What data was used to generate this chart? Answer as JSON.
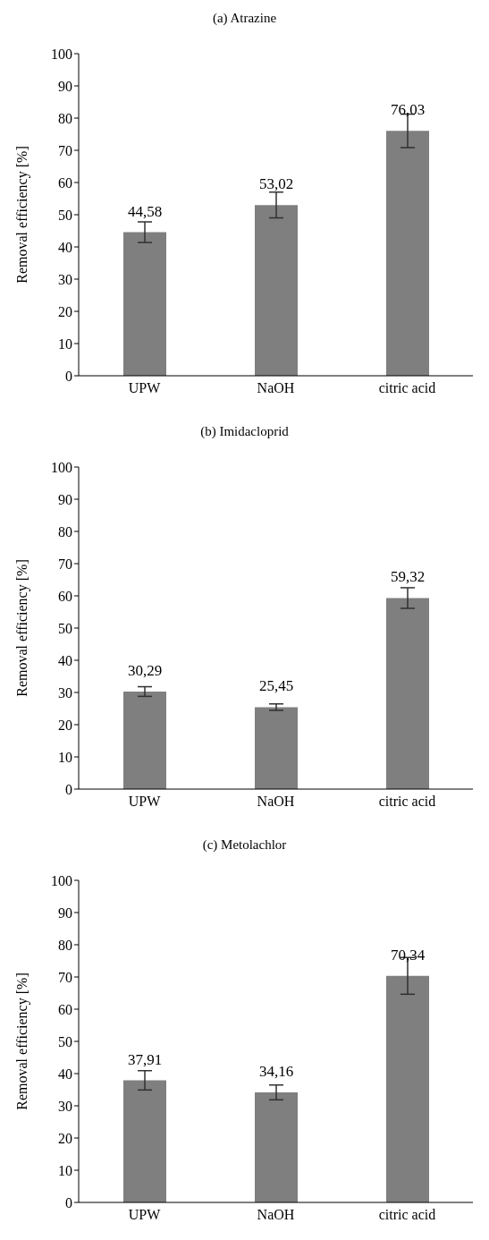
{
  "chart_data": [
    {
      "type": "bar",
      "title": "(a) Atrazine",
      "ylabel": "Removal efficiency [%]",
      "categories": [
        "UPW",
        "NaOH",
        "citric acid"
      ],
      "values": [
        44.58,
        53.02,
        76.03
      ],
      "errors": [
        3.2,
        4,
        5.2
      ],
      "value_labels": [
        "44,58",
        "53,02",
        "76,03"
      ],
      "color": "#7f7f7f",
      "ylim": [
        0,
        100
      ],
      "yticks": [
        0,
        10,
        20,
        30,
        40,
        50,
        60,
        70,
        80,
        90,
        100
      ],
      "grid": false
    },
    {
      "type": "bar",
      "title": "(b) Imidacloprid",
      "ylabel": "Removal efficiency [%]",
      "categories": [
        "UPW",
        "NaOH",
        "citric acid"
      ],
      "values": [
        30.29,
        25.45,
        59.32
      ],
      "errors": [
        1.5,
        1,
        3.2
      ],
      "value_labels": [
        "30,29",
        "25,45",
        "59,32"
      ],
      "color": "#7f7f7f",
      "ylim": [
        0,
        100
      ],
      "yticks": [
        0,
        10,
        20,
        30,
        40,
        50,
        60,
        70,
        80,
        90,
        100
      ],
      "grid": false
    },
    {
      "type": "bar",
      "title": "(c) Metolachlor",
      "ylabel": "Removal efficiency [%]",
      "categories": [
        "UPW",
        "NaOH",
        "citric acid"
      ],
      "values": [
        37.91,
        34.16,
        70.34
      ],
      "errors": [
        3,
        2.3,
        5.7
      ],
      "value_labels": [
        "37,91",
        "34,16",
        "70,34"
      ],
      "color": "#7f7f7f",
      "ylim": [
        0,
        100
      ],
      "yticks": [
        0,
        10,
        20,
        30,
        40,
        50,
        60,
        70,
        80,
        90,
        100
      ],
      "grid": false
    }
  ]
}
